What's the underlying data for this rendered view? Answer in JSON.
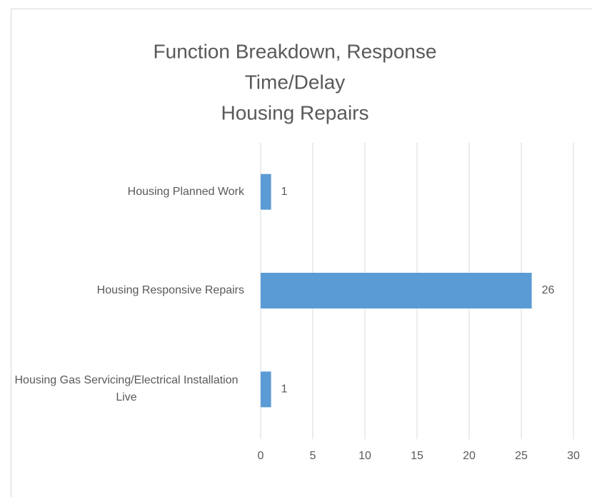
{
  "chart_data": {
    "type": "barh",
    "title": [
      "Function Breakdown, Response",
      "Time/Delay",
      "Housing Repairs"
    ],
    "categories": [
      "Housing Planned Work",
      "Housing Responsive Repairs",
      "Housing Gas Servicing/Electrical Installation Live"
    ],
    "values": [
      1,
      26,
      1
    ],
    "color": "#5b9bd5",
    "xlim": [
      0,
      30
    ],
    "xticks": [
      0,
      5,
      10,
      15,
      20,
      25,
      30
    ],
    "grid": true
  }
}
